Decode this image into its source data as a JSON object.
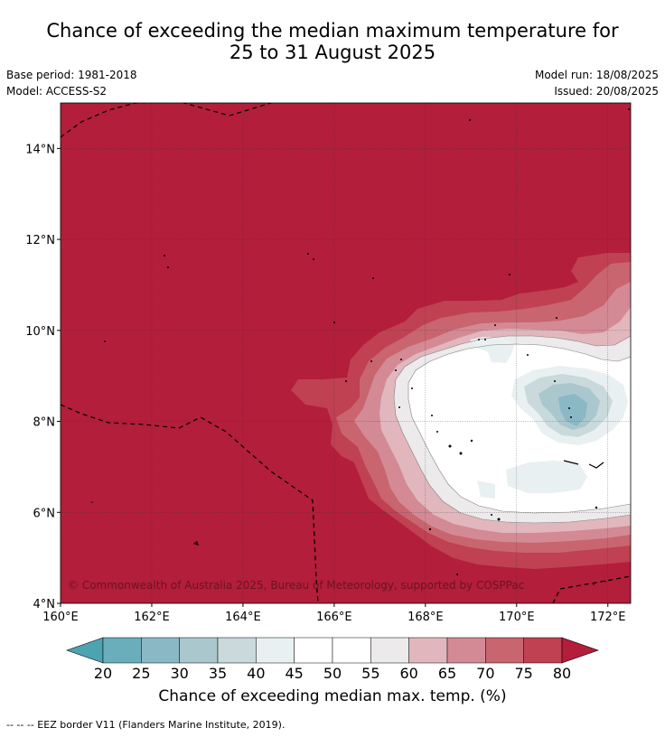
{
  "title_line1": "Chance of exceeding the median maximum temperature for",
  "title_line2": "25 to 31 August 2025",
  "base_period": "Base period: 1981-2018",
  "model": "Model: ACCESS-S2",
  "model_run": "Model run: 18/08/2025",
  "issued": "Issued: 20/08/2025",
  "map": {
    "lat_labels": [
      "14°N",
      "12°N",
      "10°N",
      "8°N",
      "6°N",
      "4°N"
    ],
    "lat_values": [
      14,
      12,
      10,
      8,
      6,
      4
    ],
    "lon_labels": [
      "160°E",
      "162°E",
      "164°E",
      "166°E",
      "168°E",
      "170°E",
      "172°E"
    ],
    "lon_values": [
      160,
      162,
      164,
      166,
      168,
      170,
      172
    ],
    "lon_range": [
      160,
      172.5
    ],
    "lat_range": [
      4,
      15
    ],
    "background_color": "#b31e3a",
    "copyright": "© Commonwealth of Australia 2025, Bureau of Meteorology, supported by COSPPac"
  },
  "colorbar": {
    "ticks": [
      "20",
      "25",
      "30",
      "35",
      "40",
      "45",
      "50",
      "55",
      "60",
      "65",
      "70",
      "75",
      "80"
    ],
    "colors": [
      "#6aaebc",
      "#8ab8c4",
      "#a9c7cd",
      "#c9d9dc",
      "#e9f0f1",
      "#ffffff",
      "#ffffff",
      "#eceaea",
      "#e1b7bd",
      "#d38a94",
      "#c9656f",
      "#bf4152",
      "#b31e3a"
    ],
    "under_color": "#4ea3b2",
    "over_color": "#b31e3a",
    "title": "Chance of exceeding median max. temp. (%)"
  },
  "legend_note": "--  --  -- EEZ border V11 (Flanders Marine Institute, 2019)."
}
